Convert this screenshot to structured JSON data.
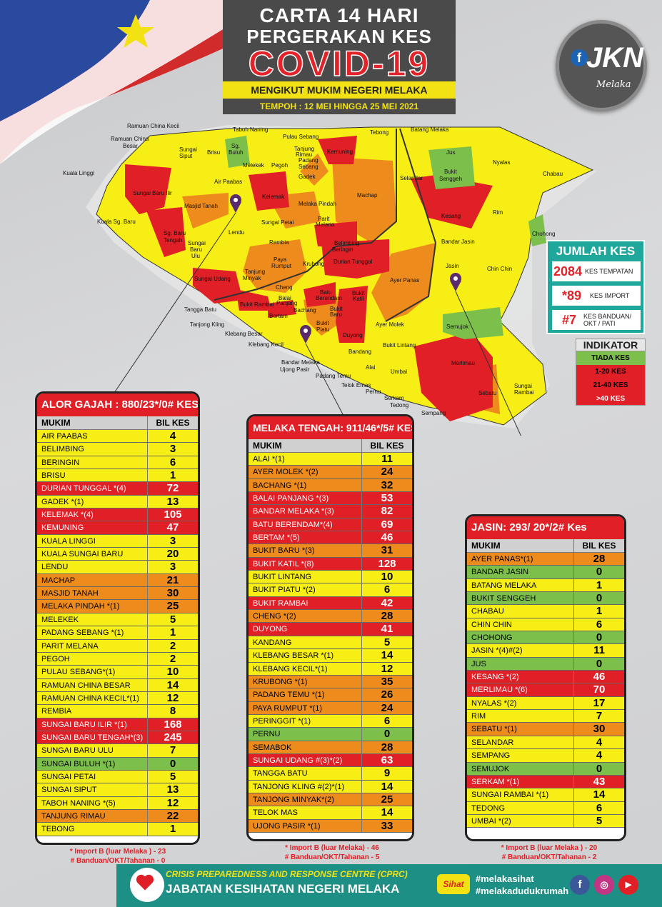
{
  "header": {
    "line1": "CARTA 14 HARI",
    "line2": "PERGERAKAN KES",
    "line3": "COVID-19",
    "subtitle": "MENGIKUT MUKIM NEGERI MELAKA",
    "period": "TEMPOH : 12 MEI HINGGA 25 MEI 2021"
  },
  "logo": {
    "f": "f",
    "text": "JKN",
    "sub": "Melaka"
  },
  "map_labels": {
    "ramuan_china_kecil": "Ramuan China Kecil",
    "ramuan_china_besar_1": "Ramuan China",
    "ramuan_china_besar_2": "Besar",
    "kuala_linggi": "Kuala Linggi",
    "kuala_sg_baru": "Kuala Sg. Baru",
    "sungai_baru_ilir": "Sungai Baru Ilir",
    "sg_baru_tengah_1": "Sg. Baru",
    "sg_baru_tengah_2": "Tengah",
    "masjid_tanah": "Masjid Tanah",
    "sungai_siput_1": "Sungai",
    "sungai_siput_2": "Siput",
    "brisu": "Brisu",
    "sg_buluh_1": "Sg.",
    "sg_buluh_2": "Buluh",
    "taboh_naning": "Taboh Naning",
    "melekek": "Melekek",
    "air_paabas": "Air Paabas",
    "pegoh": "Pegoh",
    "pulau_sebang": "Pulau Sebang",
    "tanjung_rimau_1": "Tanjung",
    "tanjung_rimau_2": "Rimau",
    "padang_sebang_1": "Padang",
    "padang_sebang_2": "Sebang",
    "gadek": "Gadek",
    "kemuning": "Kemuning",
    "tebong": "Tebong",
    "batang_melaka": "Batang Melaka",
    "jus": "Jus",
    "nyalas": "Nyalas",
    "chabau": "Chabau",
    "selandar": "Selandar",
    "bukit_senggeh_1": "Bukit",
    "bukit_senggeh_2": "Senggeh",
    "kelemak": "Kelemak",
    "machap": "Machap",
    "melaka_pindah": "Melaka Pindah",
    "lendu": "Lendu",
    "sungai_petai": "Sungai Petai",
    "parit_melana_1": "Parit",
    "parit_melana_2": "Melana",
    "sungai_baru_ulu_1": "Sungai",
    "sungai_baru_ulu_2": "Baru",
    "sungai_baru_ulu_3": "Ulu",
    "rembia": "Rembia",
    "belimbing_1": "Belimbing",
    "beringin": "Beringin",
    "kesang": "Kesang",
    "rim": "Rim",
    "chohong": "Chohong",
    "bandar_jasin": "Bandar Jasin",
    "jasin": "Jasin",
    "chin_chin": "Chin Chin",
    "durian_tunggal": "Durian Tunggal",
    "ayer_panas": "Ayer Panas",
    "sungai_udang": "Sungai Udang",
    "tanjung_minyak_1": "Tanjung",
    "tanjung_minyak_2": "Minyak",
    "paya_rumput_1": "Paya",
    "paya_rumput_2": "Rumput",
    "krubong": "Krubong",
    "cheng": "Cheng",
    "batu_berendam_1": "Batu",
    "batu_berendam_2": "Berendam",
    "bukit_katil_1": "Bukit",
    "bukit_katil_2": "Katil",
    "bukit_rambai": "Bukit Rambai",
    "balai_panjang_1": "Balai",
    "balai_panjang_2": "Panjang",
    "bertam": "Bertam",
    "bachang": "Bachang",
    "bukit_baru_1": "Bukit",
    "bukit_baru_2": "Baru",
    "bukit_piatu_1": "Bukit",
    "bukit_piatu_2": "Piatu",
    "duyong": "Duyong",
    "ayer_molek": "Ayer Molek",
    "semujok": "Semujok",
    "merlimau": "Merlimau",
    "tangga_batu": "Tangga Batu",
    "tanjong_kling": "Tanjong Kling",
    "klebang_besar": "Klebang Besar",
    "klebang_kecil": "Klebang Kecil",
    "bandar_melaka": "Bandar Melaka",
    "ujong_pasir": "Ujong Pasir",
    "padang_temu": "Padang Temu",
    "telok_emas": "Telok Emas",
    "pernu": "Pernu",
    "alai": "Alai",
    "bukit_lintang": "Bukit Lintang",
    "umbai": "Umbai",
    "serkam_1": "Serkam",
    "serkam_2": "Tedong",
    "sempang": "Sempang",
    "sebatu": "Sebatu",
    "sungai_rambai_1": "Sungai",
    "sungai_rambai_2": "Rambai",
    "bandang": "Bandang"
  },
  "jumlah": {
    "title": "JUMLAH KES",
    "tempatan_num": "2084",
    "tempatan_label": "KES TEMPATAN",
    "import_num": "*89",
    "import_label": "KES IMPORT",
    "banduan_num": "#7",
    "banduan_label_1": "KES BANDUAN/",
    "banduan_label_2": "OKT / PATI"
  },
  "indikator": {
    "title": "INDIKATOR",
    "levels": [
      "TIADA KES",
      "1-20  KES",
      "21-40  KES",
      ">40  KES"
    ]
  },
  "colors": {
    "yellow": "#f6ee14",
    "orange": "#ed8b1d",
    "red": "#e01f26",
    "green": "#7cc04b"
  },
  "tables": {
    "alor_gajah": {
      "title": "ALOR GAJAH : 880/23*/0# KES",
      "col1": "MUKIM",
      "col2": "BIL KES",
      "rows": [
        {
          "n": "AIR PAABAS",
          "v": "4",
          "c": "y"
        },
        {
          "n": "BELIMBING",
          "v": "3",
          "c": "y"
        },
        {
          "n": "BERINGIN",
          "v": "6",
          "c": "y"
        },
        {
          "n": "BRISU",
          "v": "1",
          "c": "y"
        },
        {
          "n": "DURIAN TUNGGAL *(4)",
          "v": "72",
          "c": "r"
        },
        {
          "n": "GADEK *(1)",
          "v": "13",
          "c": "y"
        },
        {
          "n": "KELEMAK *(4)",
          "v": "105",
          "c": "r"
        },
        {
          "n": "KEMUNING",
          "v": "47",
          "c": "r"
        },
        {
          "n": "KUALA LINGGI",
          "v": "3",
          "c": "y"
        },
        {
          "n": "KUALA SUNGAI BARU",
          "v": "20",
          "c": "y"
        },
        {
          "n": "LENDU",
          "v": "3",
          "c": "y"
        },
        {
          "n": "MACHAP",
          "v": "21",
          "c": "o"
        },
        {
          "n": "MASJID TANAH",
          "v": "30",
          "c": "o"
        },
        {
          "n": "MELAKA PINDAH *(1)",
          "v": "25",
          "c": "o"
        },
        {
          "n": "MELEKEK",
          "v": "5",
          "c": "y"
        },
        {
          "n": "PADANG SEBANG *(1)",
          "v": "1",
          "c": "y"
        },
        {
          "n": "PARIT MELANA",
          "v": "2",
          "c": "y"
        },
        {
          "n": "PEGOH",
          "v": "2",
          "c": "y"
        },
        {
          "n": "PULAU SEBANG*(1)",
          "v": "10",
          "c": "y"
        },
        {
          "n": "RAMUAN CHINA BESAR",
          "v": "14",
          "c": "y"
        },
        {
          "n": "RAMUAN CHINA KECIL*(1)",
          "v": "12",
          "c": "y"
        },
        {
          "n": "REMBIA",
          "v": "8",
          "c": "y"
        },
        {
          "n": "SUNGAI BARU ILIR *(1)",
          "v": "168",
          "c": "r"
        },
        {
          "n": "SUNGAI BARU TENGAH*(3)",
          "v": "245",
          "c": "r"
        },
        {
          "n": "SUNGAI BARU ULU",
          "v": "7",
          "c": "y"
        },
        {
          "n": "SUNGAI BULUH *(1)",
          "v": "0",
          "c": "g"
        },
        {
          "n": "SUNGAI PETAI",
          "v": "5",
          "c": "y"
        },
        {
          "n": "SUNGAI SIPUT",
          "v": "13",
          "c": "y"
        },
        {
          "n": "TABOH NANING *(5)",
          "v": "12",
          "c": "y"
        },
        {
          "n": "TANJUNG RIMAU",
          "v": "22",
          "c": "o"
        },
        {
          "n": "TEBONG",
          "v": "1",
          "c": "y"
        }
      ],
      "note1": "* Import B (luar Melaka ) - 23",
      "note2": "# Banduan/OKT/Tahanan - 0"
    },
    "melaka_tengah": {
      "title": "MELAKA TENGAH: 911/46*/5# KES",
      "col1": "MUKIM",
      "col2": "BIL KES",
      "rows": [
        {
          "n": "ALAI *(1)",
          "v": "11",
          "c": "y"
        },
        {
          "n": "AYER MOLEK *(2)",
          "v": "24",
          "c": "o"
        },
        {
          "n": "BACHANG *(1)",
          "v": "32",
          "c": "o"
        },
        {
          "n": "BALAI PANJANG *(3)",
          "v": "53",
          "c": "r"
        },
        {
          "n": "BANDAR MELAKA *(3)",
          "v": "82",
          "c": "r"
        },
        {
          "n": "BATU BERENDAM*(4)",
          "v": "69",
          "c": "r"
        },
        {
          "n": "BERTAM *(5)",
          "v": "46",
          "c": "r"
        },
        {
          "n": "BUKIT BARU *(3)",
          "v": "31",
          "c": "o"
        },
        {
          "n": "BUKIT KATIL *(8)",
          "v": "128",
          "c": "r"
        },
        {
          "n": "BUKIT LINTANG",
          "v": "10",
          "c": "y"
        },
        {
          "n": "BUKIT PIATU *(2)",
          "v": "6",
          "c": "y"
        },
        {
          "n": "BUKIT RAMBAI",
          "v": "42",
          "c": "r"
        },
        {
          "n": "CHENG *(2)",
          "v": "28",
          "c": "o"
        },
        {
          "n": "DUYONG",
          "v": "41",
          "c": "r"
        },
        {
          "n": "KANDANG",
          "v": "5",
          "c": "y"
        },
        {
          "n": "KLEBANG BESAR *(1)",
          "v": "14",
          "c": "y"
        },
        {
          "n": "KLEBANG KECIL*(1)",
          "v": "12",
          "c": "y"
        },
        {
          "n": "KRUBONG *(1)",
          "v": "35",
          "c": "o"
        },
        {
          "n": "PADANG TEMU *(1)",
          "v": "26",
          "c": "o"
        },
        {
          "n": "PAYA RUMPUT *(1)",
          "v": "24",
          "c": "o"
        },
        {
          "n": "PERINGGIT *(1)",
          "v": "6",
          "c": "y"
        },
        {
          "n": "PERNU",
          "v": "0",
          "c": "g"
        },
        {
          "n": "SEMABOK",
          "v": "28",
          "c": "o"
        },
        {
          "n": "SUNGAI UDANG #(3)*(2)",
          "v": "63",
          "c": "r"
        },
        {
          "n": "TANGGA BATU",
          "v": "9",
          "c": "y"
        },
        {
          "n": "TANJONG KLING #(2)*(1)",
          "v": "14",
          "c": "y"
        },
        {
          "n": "TANJONG MINYAK*(2)",
          "v": "25",
          "c": "o"
        },
        {
          "n": "TELOK MAS",
          "v": "14",
          "c": "y"
        },
        {
          "n": "UJONG PASIR *(1)",
          "v": "33",
          "c": "o"
        }
      ],
      "note1": "* Import B (luar Melaka) - 46",
      "note2": "# Banduan/OKT/Tahanan - 5"
    },
    "jasin": {
      "title": "JASIN:  293/ 20*/2# Kes",
      "col1": "MUKIM",
      "col2": "BIL KES",
      "rows": [
        {
          "n": "AYER PANAS*(1)",
          "v": "28",
          "c": "o"
        },
        {
          "n": "BANDAR JASIN",
          "v": "0",
          "c": "g"
        },
        {
          "n": "BATANG MELAKA",
          "v": "1",
          "c": "y"
        },
        {
          "n": "BUKIT SENGGEH",
          "v": "0",
          "c": "g"
        },
        {
          "n": "CHABAU",
          "v": "1",
          "c": "y"
        },
        {
          "n": "CHIN CHIN",
          "v": "6",
          "c": "y"
        },
        {
          "n": "CHOHONG",
          "v": "0",
          "c": "g"
        },
        {
          "n": "JASIN *(4)#(2)",
          "v": "11",
          "c": "y"
        },
        {
          "n": "JUS",
          "v": "0",
          "c": "g"
        },
        {
          "n": "KESANG *(2)",
          "v": "46",
          "c": "r"
        },
        {
          "n": "MERLIMAU *(6)",
          "v": "70",
          "c": "r"
        },
        {
          "n": "NYALAS *(2)",
          "v": "17",
          "c": "y"
        },
        {
          "n": "RIM",
          "v": "7",
          "c": "y"
        },
        {
          "n": "SEBATU *(1)",
          "v": "30",
          "c": "o"
        },
        {
          "n": "SELANDAR",
          "v": "4",
          "c": "y"
        },
        {
          "n": "SEMPANG",
          "v": "4",
          "c": "y"
        },
        {
          "n": "SEMUJOK",
          "v": "0",
          "c": "g"
        },
        {
          "n": "SERKAM *(1)",
          "v": "43",
          "c": "r"
        },
        {
          "n": "SUNGAI RAMBAI *(1)",
          "v": "14",
          "c": "y"
        },
        {
          "n": "TEDONG",
          "v": "6",
          "c": "y"
        },
        {
          "n": "UMBAI *(2)",
          "v": "5",
          "c": "y"
        }
      ],
      "note1": "* Import B (luar Melaka ) - 20",
      "note2": "# Banduan/OKT/Tahanan - 2"
    }
  },
  "footer": {
    "org1": "CRISIS PREPAREDNESS AND RESPONSE CENTRE (CPRC)",
    "org2": "JABATAN KESIHATAN NEGERI MELAKA",
    "sihat": "Sihat",
    "tag1": "#melakasihat",
    "tag2": "#melakadudukrumah",
    "fb": "f",
    "ig": "◎",
    "yt": "▶"
  }
}
